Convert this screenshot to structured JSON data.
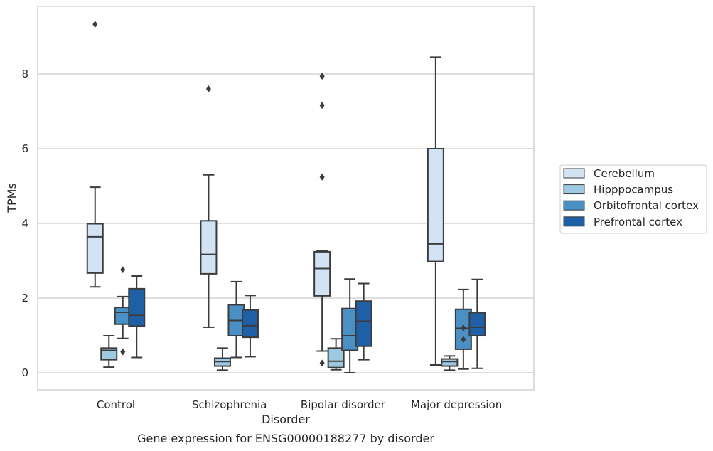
{
  "caption": "Gene expression for ENSG00000188277 by disorder",
  "chart_data": {
    "type": "boxplot",
    "title": "",
    "xlabel": "Disorder",
    "ylabel": "TPMs",
    "ylim": [
      -0.45,
      9.75
    ],
    "yticks": [
      0,
      2,
      4,
      6,
      8
    ],
    "grid": "horizontal",
    "legend_position": "right",
    "categories": [
      "Control",
      "Schizophrenia",
      "Bipolar disorder",
      "Major depression"
    ],
    "series": [
      {
        "name": "Cerebellum",
        "color": "#d2e3f3",
        "boxes": [
          {
            "whislo": 2.3,
            "q1": 2.67,
            "med": 3.64,
            "q3": 3.99,
            "whishi": 4.97,
            "fliers": [
              9.33
            ]
          },
          {
            "whislo": 1.22,
            "q1": 2.65,
            "med": 3.17,
            "q3": 4.07,
            "whishi": 5.3,
            "fliers": [
              7.6
            ]
          },
          {
            "whislo": 0.58,
            "q1": 2.06,
            "med": 2.79,
            "q3": 3.24,
            "whishi": 3.26,
            "fliers": [
              0.26,
              5.24,
              7.16,
              7.94
            ]
          },
          {
            "whislo": 0.21,
            "q1": 2.98,
            "med": 3.45,
            "q3": 6.0,
            "whishi": 8.45,
            "fliers": []
          }
        ]
      },
      {
        "name": "Hipppocampus",
        "color": "#9ecae1",
        "boxes": [
          {
            "whislo": 0.15,
            "q1": 0.35,
            "med": 0.6,
            "q3": 0.66,
            "whishi": 0.99,
            "fliers": []
          },
          {
            "whislo": 0.07,
            "q1": 0.18,
            "med": 0.3,
            "q3": 0.39,
            "whishi": 0.66,
            "fliers": []
          },
          {
            "whislo": 0.08,
            "q1": 0.14,
            "med": 0.31,
            "q3": 0.66,
            "whishi": 0.91,
            "fliers": []
          },
          {
            "whislo": 0.07,
            "q1": 0.18,
            "med": 0.3,
            "q3": 0.37,
            "whishi": 0.45,
            "fliers": []
          }
        ]
      },
      {
        "name": "Orbitofrontal cortex",
        "color": "#4a90c4",
        "boxes": [
          {
            "whislo": 0.92,
            "q1": 1.3,
            "med": 1.62,
            "q3": 1.75,
            "whishi": 2.04,
            "fliers": [
              0.56,
              2.76
            ]
          },
          {
            "whislo": 0.41,
            "q1": 0.99,
            "med": 1.4,
            "q3": 1.82,
            "whishi": 2.44,
            "fliers": []
          },
          {
            "whislo": 0.0,
            "q1": 0.6,
            "med": 0.99,
            "q3": 1.72,
            "whishi": 2.51,
            "fliers": []
          },
          {
            "whislo": 0.1,
            "q1": 0.63,
            "med": 1.19,
            "q3": 1.7,
            "whishi": 2.23,
            "fliers": [
              0.89,
              1.2
            ]
          }
        ]
      },
      {
        "name": "Prefrontal cortex",
        "color": "#1f5fa6",
        "boxes": [
          {
            "whislo": 0.41,
            "q1": 1.25,
            "med": 1.54,
            "q3": 2.25,
            "whishi": 2.59,
            "fliers": []
          },
          {
            "whislo": 0.43,
            "q1": 0.95,
            "med": 1.26,
            "q3": 1.68,
            "whishi": 2.07,
            "fliers": []
          },
          {
            "whislo": 0.35,
            "q1": 0.71,
            "med": 1.38,
            "q3": 1.92,
            "whishi": 2.39,
            "fliers": []
          },
          {
            "whislo": 0.12,
            "q1": 0.99,
            "med": 1.22,
            "q3": 1.61,
            "whishi": 2.5,
            "fliers": []
          }
        ]
      }
    ]
  }
}
